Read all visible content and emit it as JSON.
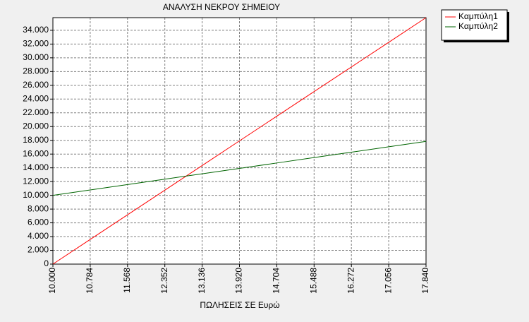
{
  "chart_data": {
    "type": "line",
    "title": "ΑΝΑΛΥΣΗ ΝΕΚΡΟΥ ΣΗΜΕΙΟΥ",
    "x_label": "ΠΩΛΗΣΕΙΣ ΣΕ Ευρώ",
    "x": [
      10000,
      10784,
      11568,
      12352,
      13136,
      13920,
      14704,
      15488,
      16272,
      17056,
      17840
    ],
    "series": [
      {
        "name": "Καμπύλη1",
        "color": "#ff0000",
        "values": [
          0,
          3584,
          7168,
          10752,
          14336,
          17920,
          21504,
          25088,
          28672,
          32256,
          35840
        ]
      },
      {
        "name": "Καμπύλη2",
        "color": "#006400",
        "values": [
          10000,
          10784,
          11568,
          12352,
          13136,
          13920,
          14704,
          15488,
          16272,
          17056,
          17840
        ]
      }
    ],
    "xlim": [
      10000,
      17840
    ],
    "xticks": [
      {
        "value": 10000,
        "label": "10.000"
      },
      {
        "value": 10784,
        "label": "10.784"
      },
      {
        "value": 11568,
        "label": "11.568"
      },
      {
        "value": 12352,
        "label": "12.352"
      },
      {
        "value": 13136,
        "label": "13.136"
      },
      {
        "value": 13920,
        "label": "13.920"
      },
      {
        "value": 14704,
        "label": "14.704"
      },
      {
        "value": 15488,
        "label": "15.488"
      },
      {
        "value": 16272,
        "label": "16.272"
      },
      {
        "value": 17056,
        "label": "17.056"
      },
      {
        "value": 17840,
        "label": "17.840"
      }
    ],
    "ylim": [
      0,
      35840
    ],
    "yticks": [
      0,
      {
        "value": 2000,
        "label": "2.000"
      },
      {
        "value": 4000,
        "label": "4.000"
      },
      {
        "value": 6000,
        "label": "6.000"
      },
      {
        "value": 8000,
        "label": "8.000"
      },
      {
        "value": 10000,
        "label": "10.000"
      },
      {
        "value": 12000,
        "label": "12.000"
      },
      {
        "value": 14000,
        "label": "14.000"
      },
      {
        "value": 16000,
        "label": "16.000"
      },
      {
        "value": 18000,
        "label": "18.000"
      },
      {
        "value": 20000,
        "label": "20.000"
      },
      {
        "value": 22000,
        "label": "22.000"
      },
      {
        "value": 24000,
        "label": "24.000"
      },
      {
        "value": 26000,
        "label": "26.000"
      },
      {
        "value": 28000,
        "label": "28.000"
      },
      {
        "value": 30000,
        "label": "30.000"
      },
      {
        "value": 32000,
        "label": "32.000"
      },
      {
        "value": 34000,
        "label": "34.000"
      }
    ],
    "grid": true,
    "legend": "top-right"
  }
}
